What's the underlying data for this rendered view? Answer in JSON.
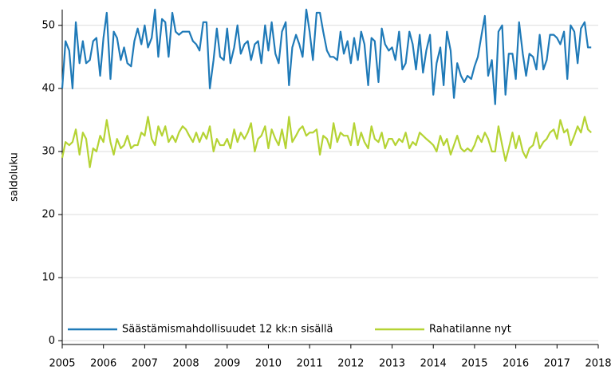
{
  "chart_data": {
    "type": "line",
    "y_label": "saldoluku",
    "xlim": [
      2005,
      2018
    ],
    "xticks": [
      2005,
      2006,
      2007,
      2008,
      2009,
      2010,
      2011,
      2012,
      2013,
      2014,
      2015,
      2016,
      2017,
      2018
    ],
    "ylim": [
      -0.6,
      52.5
    ],
    "yticks": [
      0,
      10,
      20,
      30,
      40,
      50
    ],
    "grid": true,
    "legend": "bottom",
    "x": [
      2005,
      2005.08,
      2005.17,
      2005.25,
      2005.33,
      2005.42,
      2005.5,
      2005.58,
      2005.67,
      2005.75,
      2005.83,
      2005.92,
      2006,
      2006.08,
      2006.17,
      2006.25,
      2006.33,
      2006.42,
      2006.5,
      2006.58,
      2006.67,
      2006.75,
      2006.83,
      2006.92,
      2007,
      2007.08,
      2007.17,
      2007.25,
      2007.33,
      2007.42,
      2007.5,
      2007.58,
      2007.67,
      2007.75,
      2007.83,
      2007.92,
      2008,
      2008.08,
      2008.17,
      2008.25,
      2008.33,
      2008.42,
      2008.5,
      2008.58,
      2008.67,
      2008.75,
      2008.83,
      2008.92,
      2009,
      2009.08,
      2009.17,
      2009.25,
      2009.33,
      2009.42,
      2009.5,
      2009.58,
      2009.67,
      2009.75,
      2009.83,
      2009.92,
      2010,
      2010.08,
      2010.17,
      2010.25,
      2010.33,
      2010.42,
      2010.5,
      2010.58,
      2010.67,
      2010.75,
      2010.83,
      2010.92,
      2011,
      2011.08,
      2011.17,
      2011.25,
      2011.33,
      2011.42,
      2011.5,
      2011.58,
      2011.67,
      2011.75,
      2011.83,
      2011.92,
      2012,
      2012.08,
      2012.17,
      2012.25,
      2012.33,
      2012.42,
      2012.5,
      2012.58,
      2012.67,
      2012.75,
      2012.83,
      2012.92,
      2013,
      2013.08,
      2013.17,
      2013.25,
      2013.33,
      2013.42,
      2013.5,
      2013.58,
      2013.67,
      2013.75,
      2013.83,
      2013.92,
      2014,
      2014.08,
      2014.17,
      2014.25,
      2014.33,
      2014.42,
      2014.5,
      2014.58,
      2014.67,
      2014.75,
      2014.83,
      2014.92,
      2015,
      2015.08,
      2015.17,
      2015.25,
      2015.33,
      2015.42,
      2015.5,
      2015.58,
      2015.67,
      2015.75,
      2015.83,
      2015.92,
      2016,
      2016.08,
      2016.17,
      2016.25,
      2016.33,
      2016.42,
      2016.5,
      2016.58,
      2016.67,
      2016.75,
      2016.83,
      2016.92,
      2017,
      2017.08,
      2017.17,
      2017.25,
      2017.33,
      2017.42,
      2017.5,
      2017.58,
      2017.67,
      2017.75,
      2017.83
    ],
    "series": [
      {
        "name": "Säästämismahdollisuudet 12 kk:n sisällä",
        "color": "#1f7ab8",
        "values": [
          40,
          47.5,
          46,
          40,
          50.5,
          44,
          47.5,
          44,
          44.5,
          47.5,
          48,
          42,
          48,
          52,
          41.5,
          49,
          48,
          44.5,
          46.5,
          44,
          43.5,
          47.5,
          49.5,
          47,
          50,
          46.5,
          48,
          52.5,
          45,
          51,
          50.5,
          45,
          52,
          49,
          48.5,
          49,
          49,
          49,
          47.5,
          47,
          46,
          50.5,
          50.5,
          40,
          44.5,
          49.5,
          45,
          44.5,
          49.5,
          44,
          46.5,
          50,
          45.5,
          47,
          47.5,
          44.5,
          47,
          47.5,
          44,
          50,
          46,
          50.5,
          45.5,
          44,
          49,
          50.5,
          40.5,
          46.5,
          48.5,
          47,
          45,
          52.5,
          49,
          44.5,
          52,
          52,
          49,
          46,
          45,
          45,
          44.5,
          49,
          45.5,
          47.5,
          44,
          48,
          44.5,
          49,
          47,
          40.5,
          48,
          47.5,
          41,
          49.5,
          47,
          46,
          46.5,
          44.5,
          49,
          43,
          44,
          49,
          47,
          43,
          48.5,
          42.5,
          46,
          48.5,
          39,
          44,
          46.5,
          40.5,
          49,
          46,
          38.5,
          44,
          42,
          41,
          42,
          41.5,
          43.5,
          45,
          48.5,
          51.5,
          42,
          44.5,
          37.5,
          49,
          50,
          39,
          45.5,
          45.5,
          41.5,
          50.5,
          45.5,
          42,
          45.5,
          45,
          43,
          48.5,
          43,
          44.5,
          48.5,
          48.5,
          48,
          47,
          49,
          41.5,
          50,
          49,
          44,
          49.5,
          50.5,
          46.5,
          46.5
        ]
      },
      {
        "name": "Rahatilanne nyt",
        "color": "#b5d334",
        "values": [
          29,
          31.5,
          31,
          31.5,
          33.5,
          29.5,
          33,
          32,
          27.5,
          30.5,
          30,
          32.5,
          31.5,
          35,
          31.5,
          29.5,
          32,
          30.5,
          31,
          32.5,
          30.5,
          31,
          31,
          33,
          32.5,
          35.5,
          32,
          31,
          34,
          32.5,
          34,
          31.5,
          32.5,
          31.5,
          33,
          34,
          33.5,
          32.5,
          31.5,
          33,
          31.5,
          33,
          32,
          34,
          30,
          32,
          31,
          31,
          32,
          30.5,
          33.5,
          31.5,
          33,
          32,
          33,
          34.5,
          30,
          32,
          32.5,
          34,
          30.5,
          33.5,
          32,
          31,
          33.5,
          30.5,
          35.5,
          31.5,
          32.5,
          33.5,
          34,
          32.5,
          33,
          33,
          33.5,
          29.5,
          32.5,
          32,
          30.5,
          34.5,
          31.5,
          33,
          32.5,
          32.5,
          31,
          34.5,
          31,
          33,
          31.5,
          30.5,
          34,
          32,
          31.5,
          33,
          30.5,
          32,
          32,
          31,
          32,
          31.5,
          33,
          30.5,
          31.5,
          31,
          33,
          32.5,
          32,
          31.5,
          31,
          30,
          32.5,
          31,
          32,
          29.5,
          31,
          32.5,
          30.5,
          30,
          30.5,
          30,
          31,
          32.5,
          31.5,
          33,
          32,
          30,
          30,
          34,
          31,
          28.5,
          30.5,
          33,
          30.5,
          32.5,
          30,
          29,
          30.5,
          31,
          33,
          30.5,
          31.5,
          32,
          33,
          33.5,
          32,
          35,
          33,
          33.5,
          31,
          32.5,
          34,
          33,
          35.5,
          33.5,
          33
        ]
      }
    ]
  }
}
